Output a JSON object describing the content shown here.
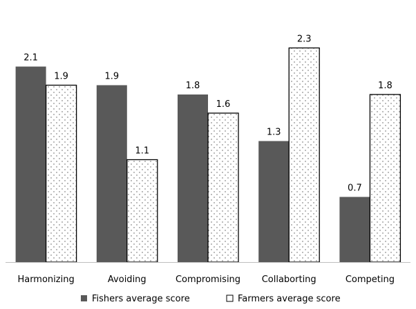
{
  "chart_data": {
    "type": "bar",
    "categories": [
      "Harmonizing",
      "Avoiding",
      "Compromising",
      "Collaborting",
      "Competing"
    ],
    "series": [
      {
        "name": "Fishers average score",
        "values": [
          2.1,
          1.9,
          1.8,
          1.3,
          0.7
        ],
        "fill": "#595959",
        "pattern": "solid"
      },
      {
        "name": "Farmers average score",
        "values": [
          1.9,
          1.1,
          1.6,
          2.3,
          1.8
        ],
        "fill": "#ffffff",
        "pattern": "dotted"
      }
    ],
    "title": "",
    "xlabel": "",
    "ylabel": "",
    "ylim": [
      0,
      2.5
    ],
    "grid": false,
    "data_labels": true,
    "legend_position": "bottom"
  }
}
